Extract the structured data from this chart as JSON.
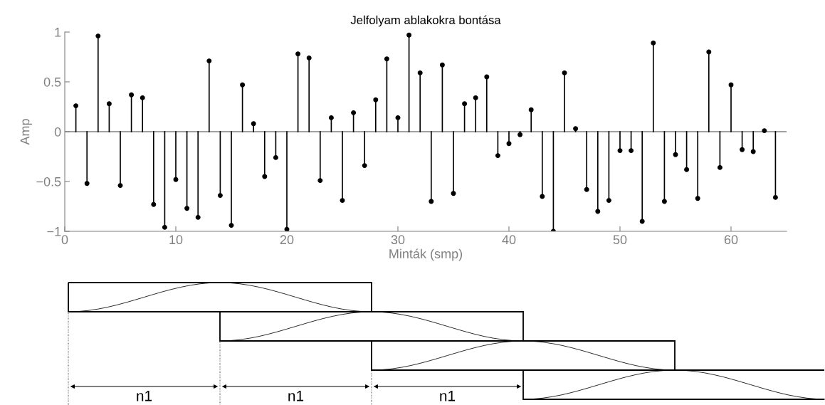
{
  "chart_data": {
    "type": "lollipop",
    "title": "Jelfolyam ablakokra bontása",
    "xlabel": "Minták (smp)",
    "ylabel": "Amp",
    "x": [
      1,
      2,
      3,
      4,
      5,
      6,
      7,
      8,
      9,
      10,
      11,
      12,
      13,
      14,
      15,
      16,
      17,
      18,
      19,
      20,
      21,
      22,
      23,
      24,
      25,
      26,
      27,
      28,
      29,
      30,
      31,
      32,
      33,
      34,
      35,
      36,
      37,
      38,
      39,
      40,
      41,
      42,
      43,
      44,
      45,
      46,
      47,
      48,
      49,
      50,
      51,
      52,
      53,
      54,
      55,
      56,
      57,
      58,
      59,
      60,
      61,
      62,
      63,
      64
    ],
    "values": [
      0.26,
      -0.52,
      0.96,
      0.28,
      -0.54,
      0.37,
      0.34,
      -0.73,
      -0.96,
      -0.48,
      -0.77,
      -0.86,
      0.71,
      -0.64,
      -0.94,
      0.47,
      0.08,
      -0.45,
      -0.26,
      -0.98,
      0.78,
      0.74,
      -0.49,
      0.14,
      -0.69,
      0.19,
      -0.34,
      0.32,
      0.73,
      0.14,
      0.97,
      0.59,
      -0.7,
      0.67,
      -0.62,
      0.28,
      0.34,
      0.55,
      -0.24,
      -0.12,
      -0.03,
      0.22,
      -0.65,
      -1.0,
      0.59,
      0.03,
      -0.58,
      -0.8,
      -0.69,
      -0.19,
      -0.19,
      -0.9,
      0.89,
      -0.7,
      -0.23,
      -0.38,
      -0.67,
      0.8,
      -0.36,
      0.47,
      -0.18,
      -0.2,
      0.01,
      -0.66
    ],
    "color": "#000000",
    "marker": "circle",
    "xlim": [
      0,
      65
    ],
    "xticks": [
      0,
      10,
      20,
      30,
      40,
      50,
      60
    ],
    "ylim": [
      -1,
      1
    ],
    "yticks": [
      {
        "value": -1,
        "label": "−1"
      },
      {
        "value": -0.5,
        "label": "−0.5"
      },
      0,
      0.5,
      1
    ],
    "ref_lines": [
      {
        "axis": "y",
        "value": 0,
        "color": "#808080"
      }
    ],
    "legend": false,
    "annotations": [
      "n1",
      "n1",
      "n1"
    ]
  }
}
